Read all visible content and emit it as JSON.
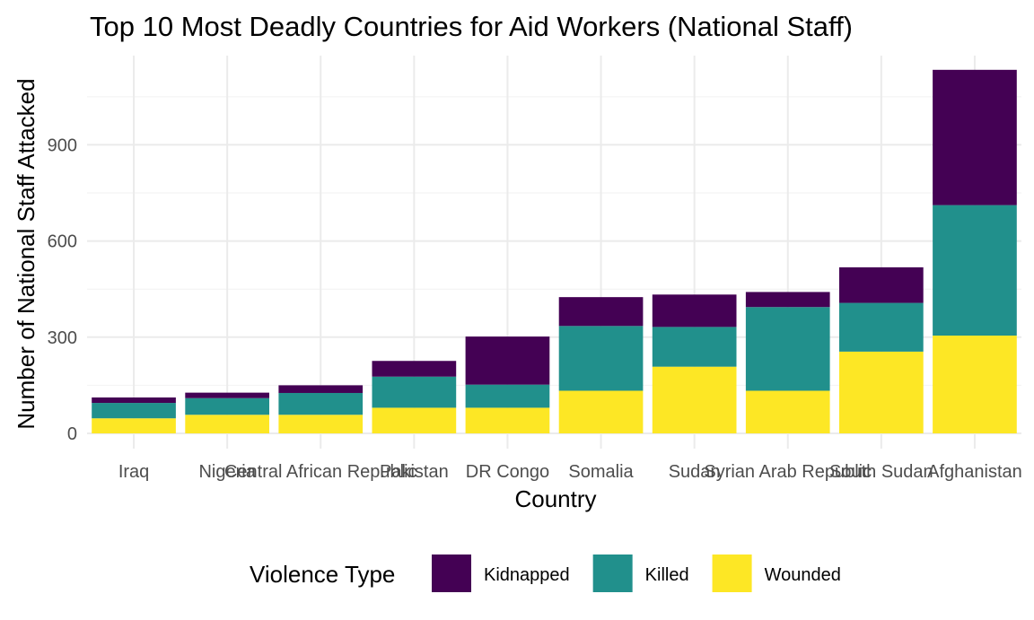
{
  "chart_data": {
    "type": "bar",
    "stacked": true,
    "title": "Top 10 Most Deadly Countries for Aid Workers (National Staff)",
    "xlabel": "Country",
    "ylabel": "Number of National Staff Attacked",
    "categories": [
      "Iraq",
      "Nigeria",
      "Central African Republic",
      "Pakistan",
      "DR Congo",
      "Somalia",
      "Sudan",
      "Syrian Arab Republic",
      "South Sudan",
      "Afghanistan"
    ],
    "series": [
      {
        "name": "Wounded",
        "color": "#FDE725",
        "values": [
          47,
          58,
          58,
          80,
          80,
          133,
          208,
          133,
          255,
          305
        ]
      },
      {
        "name": "Killed",
        "color": "#21908C",
        "values": [
          48,
          52,
          68,
          97,
          72,
          202,
          124,
          261,
          152,
          407
        ]
      },
      {
        "name": "Kidnapped",
        "color": "#440154",
        "values": [
          17,
          17,
          24,
          49,
          150,
          90,
          101,
          47,
          111,
          422
        ]
      }
    ],
    "yticks": [
      0,
      300,
      600,
      900
    ],
    "ylim": [
      0,
      1190
    ],
    "grid": true,
    "legend": {
      "title": "Violence Type",
      "position": "bottom",
      "order": [
        "Kidnapped",
        "Killed",
        "Wounded"
      ]
    }
  }
}
